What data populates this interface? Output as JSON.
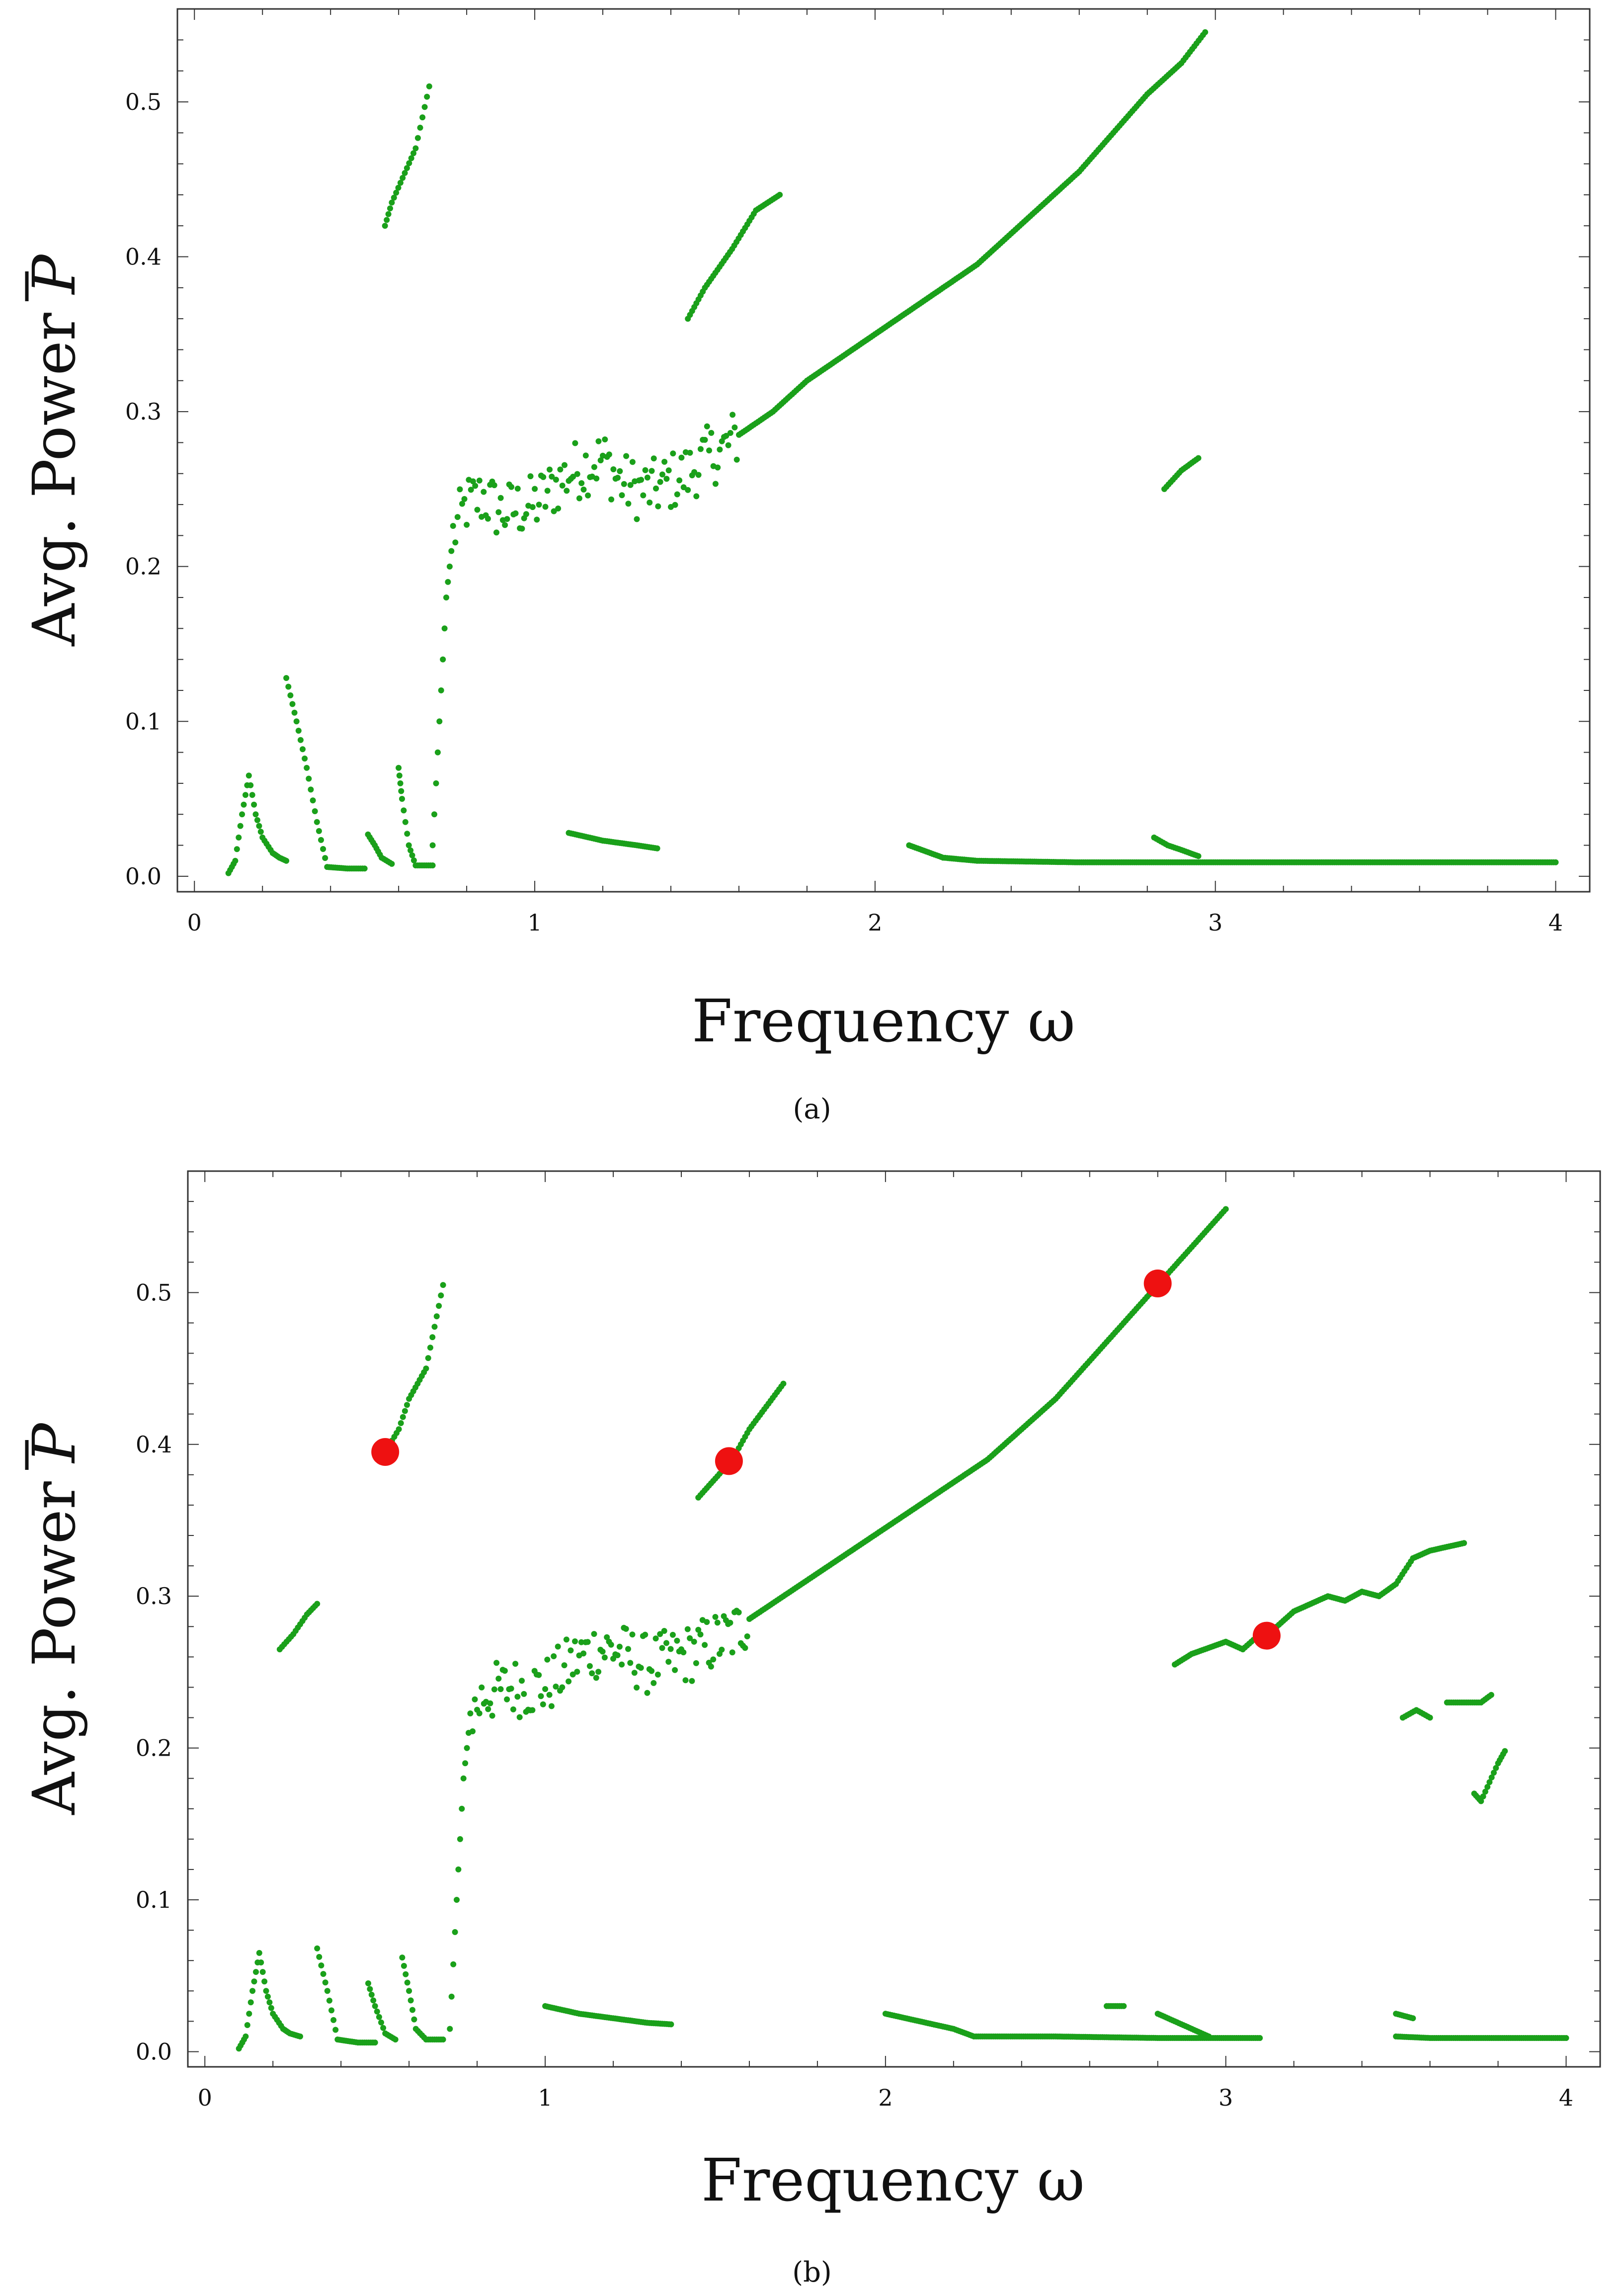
{
  "chart_data": [
    {
      "panel": "a",
      "caption": "(a)",
      "type": "scatter",
      "xlabel": "Frequency ω",
      "ylabel": "Avg. Power P",
      "ylabel_main": "Avg. Power ",
      "ylabel_symbol": "P",
      "xlim": [
        -0.05,
        4.1
      ],
      "ylim": [
        -0.01,
        0.56
      ],
      "xticks": [
        "0",
        "1",
        "2",
        "3",
        "4"
      ],
      "yticks": [
        "0.0",
        "0.1",
        "0.2",
        "0.3",
        "0.4",
        "0.5"
      ],
      "xtick_values": [
        0,
        1,
        2,
        3,
        4
      ],
      "ytick_values": [
        0.0,
        0.1,
        0.2,
        0.3,
        0.4,
        0.5
      ],
      "series": [
        {
          "name": "average power",
          "color": "#1aa01a",
          "segments": [
            [
              [
                0.1,
                0.002
              ],
              [
                0.12,
                0.01
              ],
              [
                0.14,
                0.04
              ],
              [
                0.16,
                0.065
              ],
              [
                0.18,
                0.04
              ],
              [
                0.2,
                0.025
              ],
              [
                0.23,
                0.015
              ],
              [
                0.25,
                0.012
              ],
              [
                0.27,
                0.01
              ]
            ],
            [
              [
                0.27,
                0.128
              ],
              [
                0.3,
                0.1
              ],
              [
                0.33,
                0.07
              ],
              [
                0.36,
                0.035
              ],
              [
                0.39,
                0.006
              ],
              [
                0.45,
                0.005
              ],
              [
                0.5,
                0.005
              ]
            ],
            [
              [
                0.51,
                0.027
              ],
              [
                0.53,
                0.02
              ],
              [
                0.55,
                0.012
              ],
              [
                0.58,
                0.008
              ]
            ],
            [
              [
                0.6,
                0.07
              ],
              [
                0.61,
                0.05
              ],
              [
                0.63,
                0.02
              ],
              [
                0.65,
                0.007
              ],
              [
                0.7,
                0.007
              ]
            ],
            [
              [
                0.56,
                0.42
              ],
              [
                0.58,
                0.435
              ],
              [
                0.65,
                0.47
              ],
              [
                0.69,
                0.51
              ]
            ],
            [
              [
                0.7,
                0.02
              ],
              [
                0.72,
                0.1
              ],
              [
                0.74,
                0.18
              ],
              [
                0.76,
                0.22
              ],
              [
                0.8,
                0.24
              ],
              [
                0.85,
                0.245
              ],
              [
                0.9,
                0.235
              ],
              [
                1.0,
                0.24
              ],
              [
                1.05,
                0.25
              ],
              [
                1.1,
                0.26
              ],
              [
                1.15,
                0.265
              ],
              [
                1.2,
                0.27
              ],
              [
                1.25,
                0.255
              ],
              [
                1.3,
                0.25
              ],
              [
                1.35,
                0.25
              ],
              [
                1.4,
                0.255
              ],
              [
                1.45,
                0.26
              ],
              [
                1.5,
                0.27
              ],
              [
                1.55,
                0.275
              ],
              [
                1.6,
                0.285
              ],
              [
                1.7,
                0.3
              ],
              [
                1.8,
                0.32
              ],
              [
                1.9,
                0.335
              ],
              [
                2.0,
                0.35
              ],
              [
                2.1,
                0.365
              ],
              [
                2.2,
                0.38
              ],
              [
                2.3,
                0.395
              ],
              [
                2.4,
                0.415
              ],
              [
                2.5,
                0.435
              ],
              [
                2.6,
                0.455
              ],
              [
                2.7,
                0.48
              ],
              [
                2.8,
                0.505
              ],
              [
                2.9,
                0.525
              ],
              [
                2.97,
                0.545
              ]
            ],
            [
              [
                1.45,
                0.36
              ],
              [
                1.5,
                0.38
              ],
              [
                1.58,
                0.405
              ],
              [
                1.65,
                0.43
              ],
              [
                1.72,
                0.44
              ]
            ],
            [
              [
                1.1,
                0.028
              ],
              [
                1.2,
                0.023
              ],
              [
                1.3,
                0.02
              ],
              [
                1.36,
                0.018
              ]
            ],
            [
              [
                2.1,
                0.02
              ],
              [
                2.2,
                0.012
              ],
              [
                2.3,
                0.01
              ],
              [
                2.6,
                0.009
              ],
              [
                3.0,
                0.009
              ],
              [
                3.5,
                0.009
              ],
              [
                4.0,
                0.009
              ]
            ],
            [
              [
                2.82,
                0.025
              ],
              [
                2.86,
                0.02
              ],
              [
                2.9,
                0.017
              ],
              [
                2.95,
                0.013
              ]
            ],
            [
              [
                2.85,
                0.25
              ],
              [
                2.9,
                0.262
              ],
              [
                2.95,
                0.27
              ]
            ]
          ]
        }
      ]
    },
    {
      "panel": "b",
      "caption": "(b)",
      "type": "scatter",
      "xlabel": "Frequency ω",
      "ylabel": "Avg. Power P",
      "ylabel_main": "Avg. Power ",
      "ylabel_symbol": "P",
      "xlim": [
        -0.05,
        4.1
      ],
      "ylim": [
        -0.01,
        0.58
      ],
      "xticks": [
        "0",
        "1",
        "2",
        "3",
        "4"
      ],
      "yticks": [
        "0.0",
        "0.1",
        "0.2",
        "0.3",
        "0.4",
        "0.5"
      ],
      "xtick_values": [
        0,
        1,
        2,
        3,
        4
      ],
      "ytick_values": [
        0.0,
        0.1,
        0.2,
        0.3,
        0.4,
        0.5
      ],
      "series": [
        {
          "name": "average power",
          "color": "#1aa01a",
          "segments": [
            [
              [
                0.1,
                0.002
              ],
              [
                0.12,
                0.01
              ],
              [
                0.14,
                0.04
              ],
              [
                0.16,
                0.065
              ],
              [
                0.18,
                0.04
              ],
              [
                0.2,
                0.025
              ],
              [
                0.23,
                0.015
              ],
              [
                0.25,
                0.012
              ],
              [
                0.28,
                0.01
              ]
            ],
            [
              [
                0.22,
                0.265
              ],
              [
                0.26,
                0.275
              ],
              [
                0.3,
                0.288
              ],
              [
                0.33,
                0.295
              ]
            ],
            [
              [
                0.33,
                0.068
              ],
              [
                0.36,
                0.04
              ],
              [
                0.39,
                0.008
              ],
              [
                0.45,
                0.006
              ],
              [
                0.5,
                0.006
              ]
            ],
            [
              [
                0.48,
                0.045
              ],
              [
                0.5,
                0.03
              ],
              [
                0.53,
                0.012
              ],
              [
                0.56,
                0.008
              ]
            ],
            [
              [
                0.58,
                0.062
              ],
              [
                0.6,
                0.04
              ],
              [
                0.62,
                0.015
              ],
              [
                0.65,
                0.008
              ],
              [
                0.7,
                0.008
              ]
            ],
            [
              [
                0.53,
                0.395
              ],
              [
                0.57,
                0.41
              ],
              [
                0.6,
                0.43
              ],
              [
                0.65,
                0.45
              ],
              [
                0.7,
                0.505
              ]
            ],
            [
              [
                0.72,
                0.015
              ],
              [
                0.74,
                0.1
              ],
              [
                0.76,
                0.18
              ],
              [
                0.78,
                0.22
              ],
              [
                0.82,
                0.235
              ],
              [
                0.9,
                0.24
              ],
              [
                1.0,
                0.24
              ],
              [
                1.05,
                0.25
              ],
              [
                1.1,
                0.26
              ],
              [
                1.15,
                0.265
              ],
              [
                1.2,
                0.265
              ],
              [
                1.3,
                0.255
              ],
              [
                1.4,
                0.26
              ],
              [
                1.5,
                0.27
              ],
              [
                1.55,
                0.275
              ],
              [
                1.6,
                0.285
              ],
              [
                1.7,
                0.3
              ],
              [
                1.8,
                0.315
              ],
              [
                1.9,
                0.33
              ],
              [
                2.0,
                0.345
              ],
              [
                2.1,
                0.36
              ],
              [
                2.2,
                0.375
              ],
              [
                2.3,
                0.39
              ],
              [
                2.4,
                0.41
              ],
              [
                2.5,
                0.43
              ],
              [
                2.6,
                0.455
              ],
              [
                2.7,
                0.48
              ],
              [
                2.8,
                0.505
              ],
              [
                2.9,
                0.53
              ],
              [
                3.0,
                0.555
              ]
            ],
            [
              [
                1.45,
                0.365
              ],
              [
                1.55,
                0.39
              ],
              [
                1.6,
                0.41
              ],
              [
                1.65,
                0.425
              ],
              [
                1.7,
                0.44
              ]
            ],
            [
              [
                1.0,
                0.03
              ],
              [
                1.1,
                0.025
              ],
              [
                1.2,
                0.022
              ],
              [
                1.3,
                0.019
              ],
              [
                1.37,
                0.018
              ]
            ],
            [
              [
                2.0,
                0.025
              ],
              [
                2.1,
                0.02
              ],
              [
                2.2,
                0.015
              ],
              [
                2.26,
                0.01
              ],
              [
                2.5,
                0.01
              ],
              [
                2.8,
                0.009
              ],
              [
                3.1,
                0.009
              ]
            ],
            [
              [
                2.65,
                0.03
              ],
              [
                2.7,
                0.03
              ]
            ],
            [
              [
                2.8,
                0.025
              ],
              [
                2.85,
                0.02
              ],
              [
                2.9,
                0.015
              ],
              [
                2.95,
                0.01
              ]
            ],
            [
              [
                2.85,
                0.255
              ],
              [
                2.9,
                0.262
              ],
              [
                3.0,
                0.27
              ],
              [
                3.05,
                0.265
              ],
              [
                3.1,
                0.275
              ],
              [
                3.15,
                0.28
              ],
              [
                3.2,
                0.29
              ],
              [
                3.25,
                0.295
              ],
              [
                3.3,
                0.3
              ],
              [
                3.35,
                0.297
              ],
              [
                3.4,
                0.303
              ],
              [
                3.45,
                0.3
              ],
              [
                3.5,
                0.308
              ],
              [
                3.55,
                0.325
              ],
              [
                3.6,
                0.33
              ],
              [
                3.7,
                0.335
              ]
            ],
            [
              [
                3.5,
                0.025
              ],
              [
                3.55,
                0.022
              ]
            ],
            [
              [
                3.5,
                0.01
              ],
              [
                3.6,
                0.009
              ],
              [
                3.8,
                0.009
              ],
              [
                4.0,
                0.009
              ]
            ],
            [
              [
                3.52,
                0.22
              ],
              [
                3.56,
                0.225
              ],
              [
                3.6,
                0.22
              ]
            ],
            [
              [
                3.65,
                0.23
              ],
              [
                3.7,
                0.23
              ],
              [
                3.75,
                0.23
              ],
              [
                3.78,
                0.235
              ]
            ],
            [
              [
                3.73,
                0.17
              ],
              [
                3.75,
                0.165
              ],
              [
                3.8,
                0.19
              ],
              [
                3.82,
                0.198
              ]
            ]
          ]
        },
        {
          "name": "highlighted points",
          "color": "#ee1111",
          "points": [
            [
              0.53,
              0.395
            ],
            [
              1.54,
              0.389
            ],
            [
              2.8,
              0.506
            ],
            [
              3.12,
              0.274
            ]
          ]
        }
      ]
    }
  ]
}
